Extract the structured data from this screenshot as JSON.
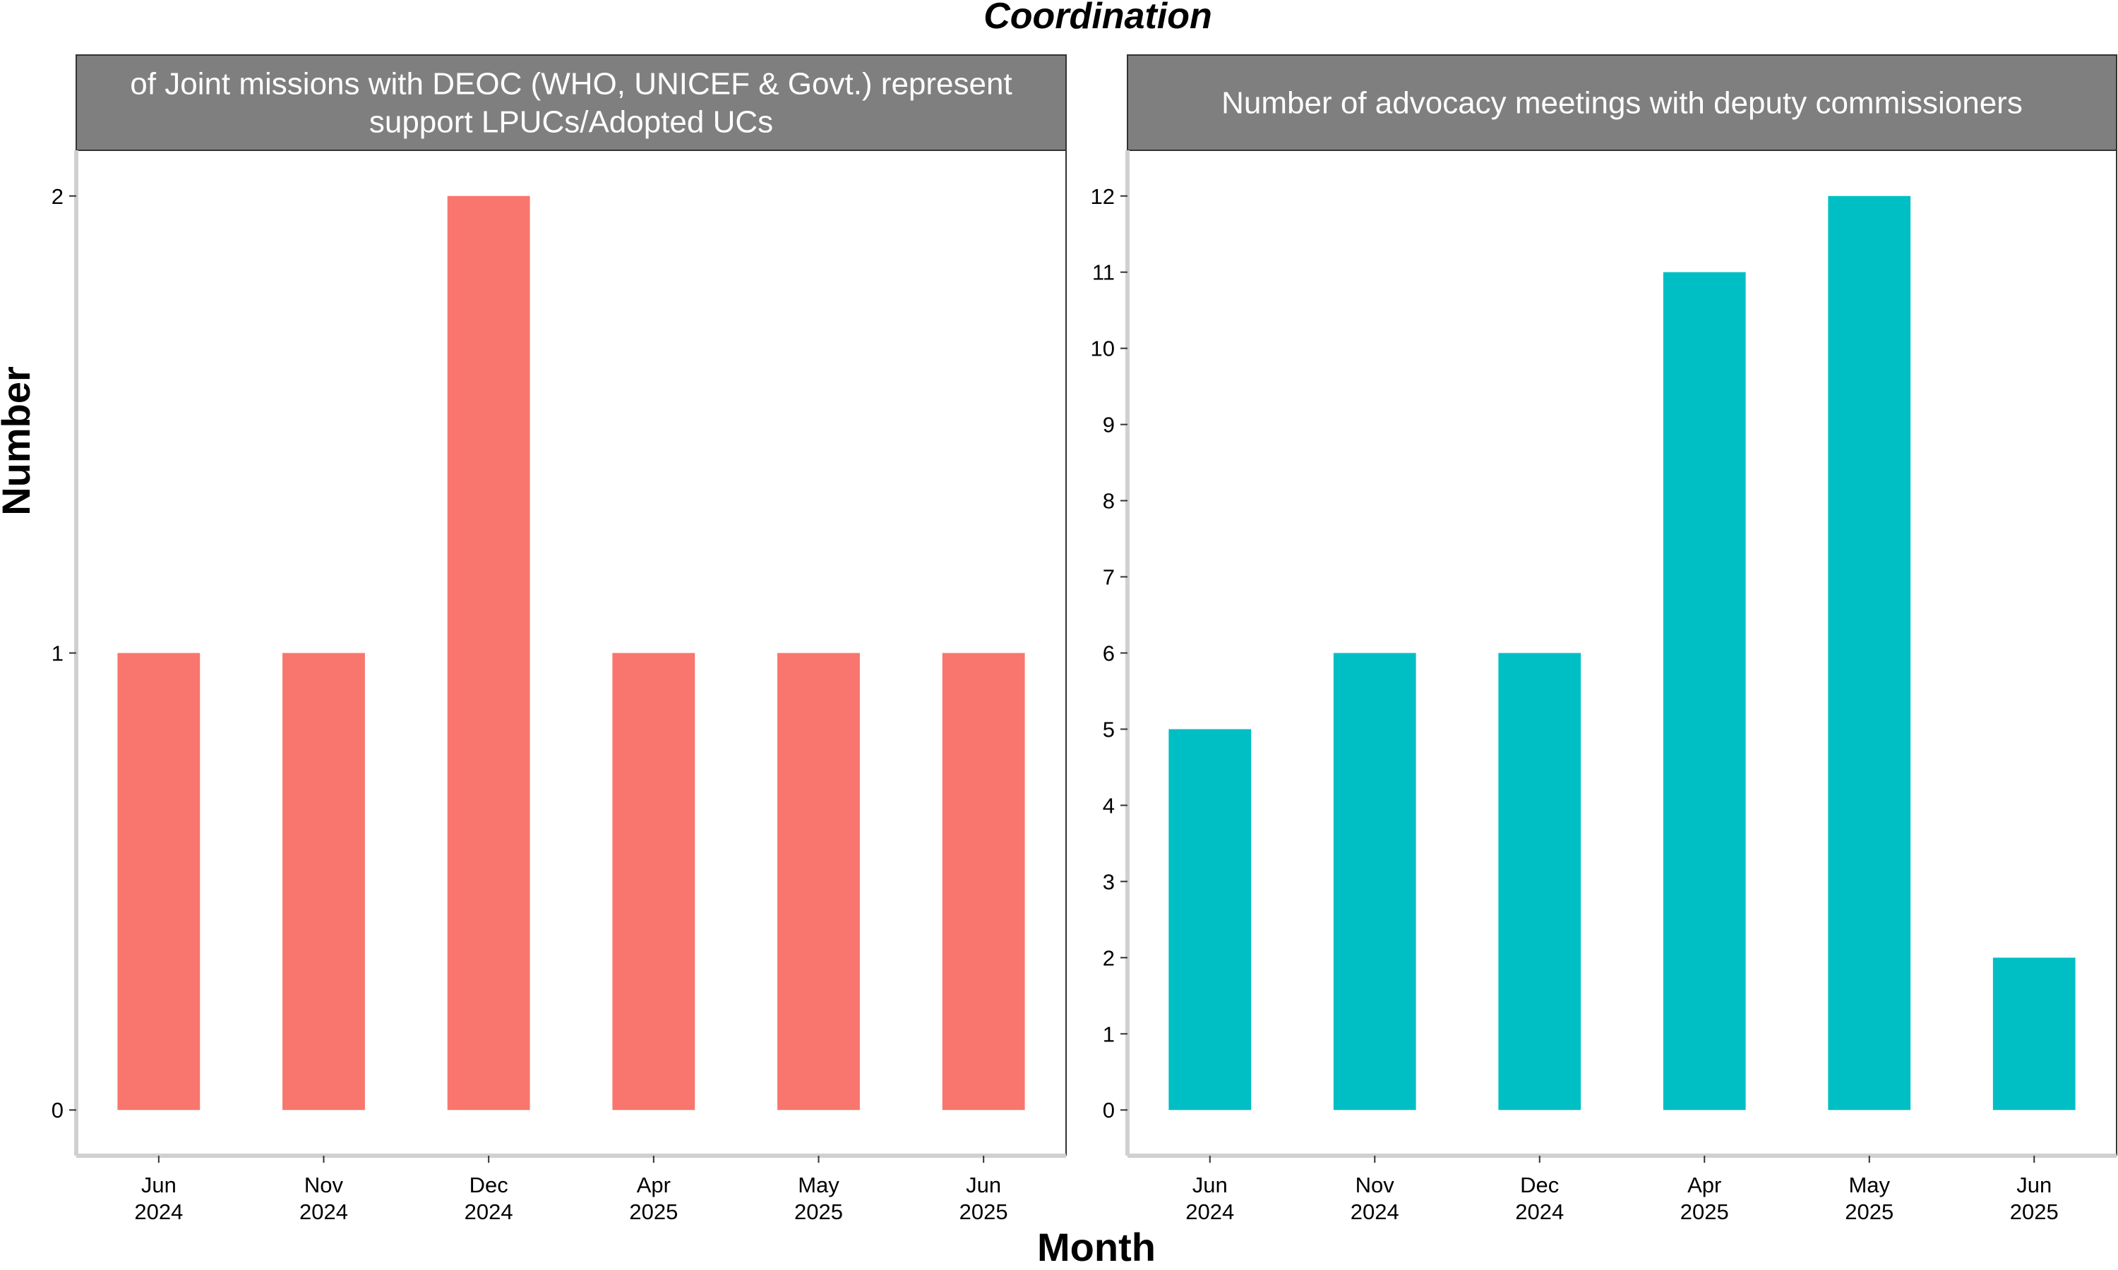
{
  "title": "Coordination",
  "xlabel": "Month",
  "ylabel": "Number",
  "chart_data": [
    {
      "type": "bar",
      "title_lines": [
        "of Joint missions with DEOC (WHO, UNICEF & Govt.) represent",
        "support LPUCs/Adopted UCs"
      ],
      "categories": [
        {
          "month": "Jun",
          "year": "2024"
        },
        {
          "month": "Nov",
          "year": "2024"
        },
        {
          "month": "Dec",
          "year": "2024"
        },
        {
          "month": "Apr",
          "year": "2025"
        },
        {
          "month": "May",
          "year": "2025"
        },
        {
          "month": "Jun",
          "year": "2025"
        }
      ],
      "values": [
        1,
        1,
        2,
        1,
        1,
        1
      ],
      "yticks": [
        0,
        1,
        2
      ],
      "ylim": [
        -0.1,
        2.1
      ],
      "color": "#F8766D"
    },
    {
      "type": "bar",
      "title_lines": [
        "Number of advocacy meetings with deputy commissioners"
      ],
      "categories": [
        {
          "month": "Jun",
          "year": "2024"
        },
        {
          "month": "Nov",
          "year": "2024"
        },
        {
          "month": "Dec",
          "year": "2024"
        },
        {
          "month": "Apr",
          "year": "2025"
        },
        {
          "month": "May",
          "year": "2025"
        },
        {
          "month": "Jun",
          "year": "2025"
        }
      ],
      "values": [
        5,
        6,
        6,
        11,
        12,
        2
      ],
      "yticks": [
        0,
        1,
        2,
        3,
        4,
        5,
        6,
        7,
        8,
        9,
        10,
        11,
        12
      ],
      "ylim": [
        -0.6,
        12.6
      ],
      "color": "#00BFC4"
    }
  ]
}
